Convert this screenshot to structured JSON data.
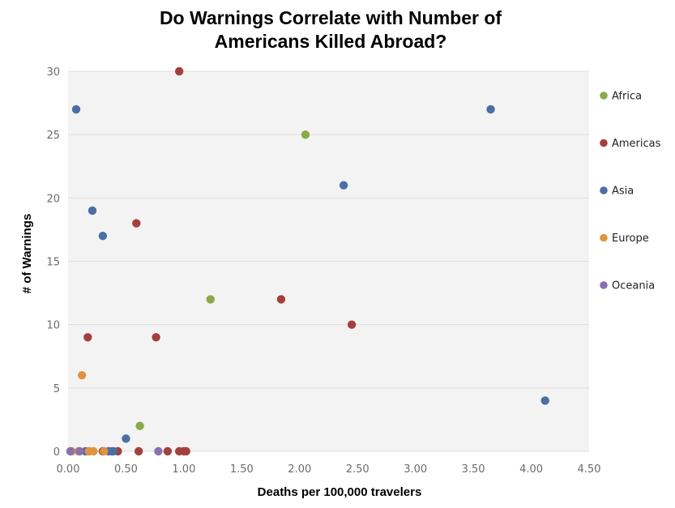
{
  "chart_data": {
    "type": "scatter",
    "title_lines": [
      "Do Warnings Correlate with Number of",
      "Americans Killed Abroad?"
    ],
    "xlabel": "Deaths per 100,000 travelers",
    "ylabel": "# of Warnings",
    "xlim": [
      0,
      4.5
    ],
    "ylim": [
      0,
      30
    ],
    "x_ticks": [
      "0.00",
      "0.50",
      "1.00",
      "1.50",
      "2.00",
      "2.50",
      "3.00",
      "3.50",
      "4.00",
      "4.50"
    ],
    "y_ticks": [
      "0",
      "5",
      "10",
      "15",
      "20",
      "25",
      "30"
    ],
    "grid": true,
    "legend_position": "right",
    "series": [
      {
        "name": "Africa",
        "color": "#8aaa4a",
        "points": [
          [
            1.23,
            12
          ],
          [
            2.05,
            25
          ],
          [
            0.62,
            2
          ]
        ]
      },
      {
        "name": "Americas",
        "color": "#a3403c",
        "points": [
          [
            0.96,
            30
          ],
          [
            0.59,
            18
          ],
          [
            0.17,
            9
          ],
          [
            0.76,
            9
          ],
          [
            1.84,
            12
          ],
          [
            2.45,
            10
          ],
          [
            0.43,
            0
          ],
          [
            0.61,
            0
          ],
          [
            0.86,
            0
          ],
          [
            0.96,
            0
          ],
          [
            1.0,
            0
          ],
          [
            1.02,
            0
          ],
          [
            0.38,
            0
          ],
          [
            0.3,
            0
          ]
        ]
      },
      {
        "name": "Asia",
        "color": "#4a6fa5",
        "points": [
          [
            0.07,
            27
          ],
          [
            3.65,
            27
          ],
          [
            2.38,
            21
          ],
          [
            0.21,
            19
          ],
          [
            0.3,
            17
          ],
          [
            4.12,
            4
          ],
          [
            0.5,
            1
          ],
          [
            0.35,
            0
          ],
          [
            0.39,
            0
          ],
          [
            0.15,
            0
          ]
        ]
      },
      {
        "name": "Europe",
        "color": "#e0933e",
        "points": [
          [
            0.12,
            6
          ],
          [
            0.03,
            0
          ],
          [
            0.09,
            0
          ],
          [
            0.18,
            0
          ],
          [
            0.22,
            0
          ],
          [
            0.31,
            0
          ]
        ]
      },
      {
        "name": "Oceania",
        "color": "#8c6fb0",
        "points": [
          [
            0.02,
            0
          ],
          [
            0.1,
            0
          ],
          [
            0.78,
            0
          ]
        ]
      }
    ]
  }
}
